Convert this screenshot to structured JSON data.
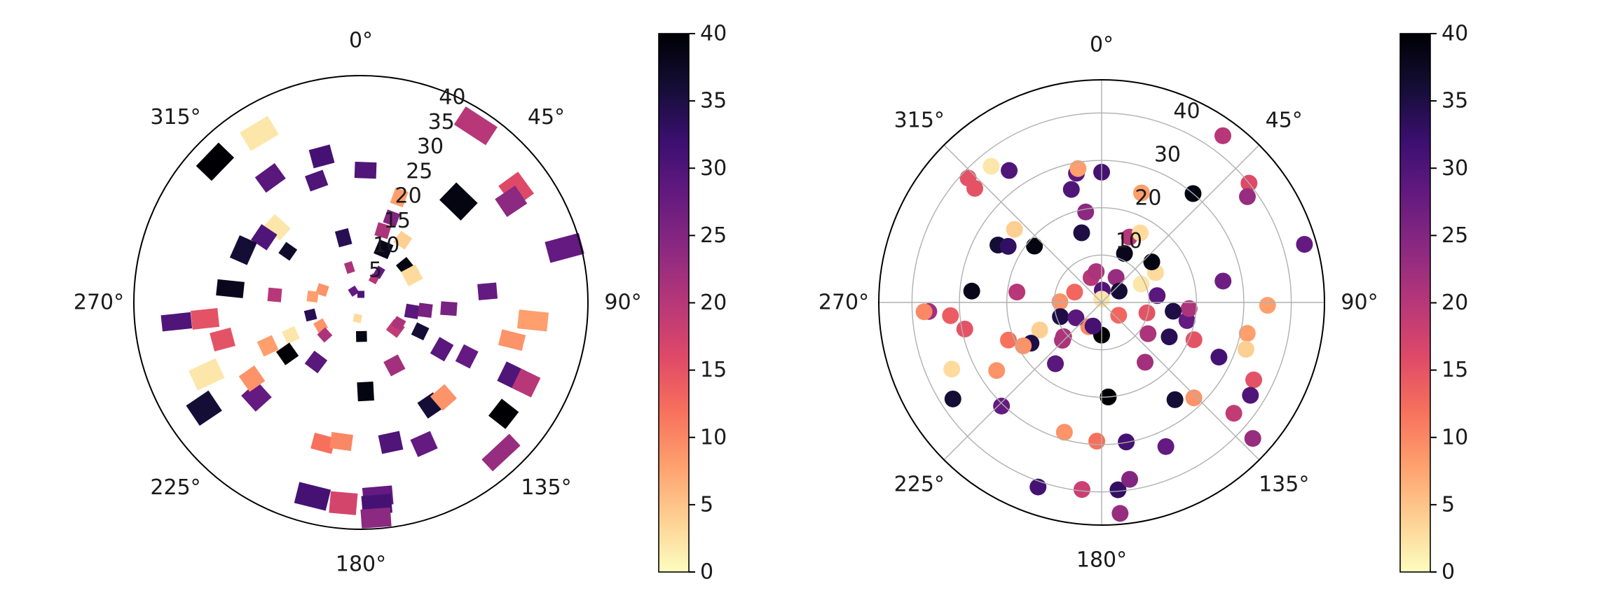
{
  "figure": {
    "background": "#ffffff",
    "text_color": "#1a1a1a",
    "grid_color": "#b0b0b0",
    "axis_color": "#000000"
  },
  "colormap": {
    "name": "magma_r",
    "value_range": [
      0,
      40
    ],
    "stops": [
      [
        0,
        0,
        4
      ],
      [
        20,
        14,
        54
      ],
      [
        59,
        15,
        112
      ],
      [
        100,
        26,
        128
      ],
      [
        140,
        41,
        129
      ],
      [
        183,
        55,
        121
      ],
      [
        222,
        73,
        104
      ],
      [
        247,
        112,
        92
      ],
      [
        254,
        159,
        109
      ],
      [
        254,
        207,
        146
      ],
      [
        252,
        253,
        191
      ]
    ]
  },
  "chart_data": [
    {
      "type": "scatter",
      "projection": "polar",
      "marker": "square",
      "title": "",
      "theta_zero": "top",
      "theta_direction": "clockwise",
      "grid": false,
      "rmax": 42,
      "angle_tick_degrees": [
        0,
        45,
        90,
        135,
        180,
        225,
        270,
        315
      ],
      "angle_tick_labels": [
        "0°",
        "45°",
        "90°",
        "135°",
        "180°",
        "225°",
        "270°",
        "315°"
      ],
      "radial_ticks": [
        5,
        10,
        15,
        20,
        25,
        30,
        35,
        40
      ],
      "radial_tick_labels": [
        "5",
        "10",
        "15",
        "20",
        "25",
        "30",
        "35",
        "40"
      ],
      "radial_label_angle": 24,
      "points_format": [
        "theta_deg",
        "r",
        "value",
        "w_units",
        "h_units"
      ],
      "points": [
        [
          33,
          39,
          20,
          7,
          4
        ],
        [
          44,
          26,
          39,
          5.5,
          4.5
        ],
        [
          54,
          35.5,
          16,
          5,
          4.5
        ],
        [
          56,
          33.5,
          24,
          4,
          4.5
        ],
        [
          75,
          39,
          28,
          4,
          6.5
        ],
        [
          94,
          16.3,
          26,
          2.5,
          3
        ],
        [
          85,
          23.5,
          28,
          3,
          3.5
        ],
        [
          96,
          32,
          8,
          3.5,
          5.5
        ],
        [
          104,
          28.8,
          9,
          3,
          4.5
        ],
        [
          51,
          10.6,
          39,
          2.5,
          2.5
        ],
        [
          62,
          10.7,
          3,
          3,
          3
        ],
        [
          34,
          13.9,
          4,
          2.5,
          2.5
        ],
        [
          23,
          10.7,
          38,
          2.8,
          2.8
        ],
        [
          17,
          13.9,
          21,
          2.5,
          2.5
        ],
        [
          20,
          20.7,
          8,
          2.5,
          3
        ],
        [
          20,
          16.6,
          25,
          2.5,
          2.5
        ],
        [
          2,
          24.5,
          30,
          4,
          3
        ],
        [
          345,
          28,
          31,
          4,
          3.5
        ],
        [
          340,
          24,
          30,
          3.5,
          3
        ],
        [
          345,
          12.4,
          34,
          2.5,
          3
        ],
        [
          329,
          36.5,
          2,
          6,
          4
        ],
        [
          314,
          37.5,
          40,
          6,
          4
        ],
        [
          324,
          28.5,
          29,
          4.5,
          3.5
        ],
        [
          312,
          20.8,
          2,
          3,
          4
        ],
        [
          304,
          21.6,
          30,
          3.5,
          3.5
        ],
        [
          305,
          16.5,
          37,
          2.5,
          2.5
        ],
        [
          294,
          23.8,
          36,
          4.5,
          3.5
        ],
        [
          327,
          2.5,
          28,
          1.5,
          1.5
        ],
        [
          0,
          1.5,
          30,
          1.3,
          1.3
        ],
        [
          29,
          5,
          20,
          1.5,
          1.5
        ],
        [
          31,
          6.5,
          28,
          1.5,
          2
        ],
        [
          342,
          6.8,
          21,
          1.5,
          2
        ],
        [
          288,
          7.5,
          9,
          2,
          2
        ],
        [
          277,
          9,
          8,
          2,
          2
        ],
        [
          275,
          16,
          20,
          2.5,
          2.5
        ],
        [
          276,
          24.3,
          38,
          3,
          5
        ],
        [
          264,
          34.3,
          30,
          3,
          5.5
        ],
        [
          264,
          29,
          15,
          3.5,
          5
        ],
        [
          255,
          26.5,
          15,
          3.5,
          4
        ],
        [
          256,
          9.6,
          34,
          2,
          2
        ],
        [
          245,
          31.5,
          2,
          4,
          5.5
        ],
        [
          245,
          19,
          8,
          3,
          3
        ],
        [
          245,
          14.3,
          2,
          2.5,
          2.5
        ],
        [
          240,
          8.6,
          9,
          2,
          2
        ],
        [
          235,
          16.6,
          40,
          3,
          3
        ],
        [
          228,
          9,
          21,
          2,
          2
        ],
        [
          236,
          35,
          36,
          4.5,
          5
        ],
        [
          228,
          26,
          28,
          4,
          4
        ],
        [
          217,
          13.8,
          29,
          3,
          3
        ],
        [
          235,
          24.6,
          9,
          3.5,
          3.5
        ],
        [
          195,
          27,
          12,
          4,
          3
        ],
        [
          188,
          26,
          10,
          4,
          3
        ],
        [
          194,
          37,
          31,
          6,
          4
        ],
        [
          185,
          37.3,
          17,
          5,
          4
        ],
        [
          175,
          36,
          28,
          5.5,
          3.5
        ],
        [
          175.5,
          37.5,
          31,
          5.5,
          3.5
        ],
        [
          176,
          40,
          24,
          5.5,
          3.5
        ],
        [
          177,
          16.5,
          39,
          3,
          3.5
        ],
        [
          179,
          6.3,
          39,
          2,
          2
        ],
        [
          192,
          3,
          3,
          1.5,
          1.5
        ],
        [
          168,
          26.5,
          30,
          4,
          3.5
        ],
        [
          156,
          28.7,
          28,
          4,
          3.5
        ],
        [
          146,
          23,
          36,
          3.5,
          3.5
        ],
        [
          139,
          23.3,
          9,
          3.5,
          3.5
        ],
        [
          152,
          13.2,
          22,
          3,
          3
        ],
        [
          127,
          8,
          19,
          2.5,
          2.5
        ],
        [
          119,
          8,
          21,
          2,
          2
        ],
        [
          116,
          12.2,
          36,
          2.5,
          2.5
        ],
        [
          137,
          38,
          23,
          7,
          3
        ],
        [
          128,
          33.5,
          40,
          4,
          4
        ],
        [
          116,
          31,
          30,
          4,
          4
        ],
        [
          116,
          34,
          20,
          4,
          4
        ],
        [
          120,
          17.3,
          29,
          3.5,
          3
        ],
        [
          117,
          22,
          28,
          3.5,
          3
        ],
        [
          100,
          9.6,
          29,
          2.5,
          2.5
        ],
        [
          97,
          12,
          26,
          2.5,
          2.5
        ]
      ]
    },
    {
      "type": "scatter",
      "projection": "polar",
      "marker": "circle",
      "title": "",
      "theta_zero": "top",
      "theta_direction": "clockwise",
      "grid": true,
      "rmax": 47,
      "angle_tick_degrees": [
        0,
        45,
        90,
        135,
        180,
        225,
        270,
        315
      ],
      "angle_tick_labels": [
        "0°",
        "45°",
        "90°",
        "135°",
        "180°",
        "225°",
        "270°",
        "315°"
      ],
      "radial_ticks": [
        10,
        20,
        30,
        40
      ],
      "radial_tick_labels": [
        "10",
        "20",
        "30",
        "40"
      ],
      "radial_label_angle": 24,
      "points_format": [
        "theta_deg",
        "r",
        "value"
      ],
      "points": [
        [
          36,
          43.5,
          20
        ],
        [
          51,
          40,
          16
        ],
        [
          54,
          38,
          23
        ],
        [
          40,
          30,
          39
        ],
        [
          74,
          44.5,
          28
        ],
        [
          91,
          35,
          8
        ],
        [
          80,
          26,
          27
        ],
        [
          20,
          24.6,
          8
        ],
        [
          0,
          27.5,
          31
        ],
        [
          349,
          27.8,
          29
        ],
        [
          345,
          24.7,
          30
        ],
        [
          350,
          28.7,
          8
        ],
        [
          350,
          19.4,
          24
        ],
        [
          344,
          15.3,
          35
        ],
        [
          325,
          34,
          30
        ],
        [
          321,
          37,
          2
        ],
        [
          313,
          38.5,
          15
        ],
        [
          312,
          36,
          15
        ],
        [
          310,
          24,
          4
        ],
        [
          299,
          25,
          36
        ],
        [
          301,
          23,
          33
        ],
        [
          310,
          18.5,
          39
        ],
        [
          275,
          27.5,
          38
        ],
        [
          277,
          18,
          20
        ],
        [
          267,
          36.5,
          22
        ],
        [
          267,
          37.5,
          10
        ],
        [
          265,
          32,
          14
        ],
        [
          259,
          29.4,
          15
        ],
        [
          248,
          21.2,
          12
        ],
        [
          246,
          14.3,
          4
        ],
        [
          240,
          17.2,
          35
        ],
        [
          241,
          18.9,
          9
        ],
        [
          228,
          10.8,
          21
        ],
        [
          217,
          16.2,
          29
        ],
        [
          246,
          34.6,
          3
        ],
        [
          237,
          26.4,
          9
        ],
        [
          237,
          37.4,
          36
        ],
        [
          224,
          30.4,
          28
        ],
        [
          196,
          28.5,
          9
        ],
        [
          182,
          29.3,
          12
        ],
        [
          170,
          29.9,
          31
        ],
        [
          156,
          33.3,
          28
        ],
        [
          199,
          41.2,
          31
        ],
        [
          186,
          39.7,
          18
        ],
        [
          175,
          39.7,
          33
        ],
        [
          171,
          37.8,
          25
        ],
        [
          175,
          44.7,
          23
        ],
        [
          176,
          20,
          40
        ],
        [
          180,
          6.9,
          40
        ],
        [
          144,
          15.6,
          22
        ],
        [
          117,
          16,
          34
        ],
        [
          102,
          18.4,
          28
        ],
        [
          112,
          21,
          15
        ],
        [
          124,
          11.8,
          21
        ],
        [
          115,
          27.3,
          31
        ],
        [
          102,
          31.4,
          8
        ],
        [
          108,
          32,
          4
        ],
        [
          117,
          36,
          15
        ],
        [
          122,
          37,
          30
        ],
        [
          130,
          36.4,
          19
        ],
        [
          132,
          42.9,
          23
        ],
        [
          143,
          25.7,
          36
        ],
        [
          136,
          28,
          9
        ],
        [
          94,
          18.5,
          21
        ],
        [
          97,
          15.2,
          35
        ],
        [
          83,
          11.8,
          29
        ],
        [
          61,
          13,
          3
        ],
        [
          65,
          9.2,
          2
        ],
        [
          51,
          13.6,
          39
        ],
        [
          25,
          11.4,
          38
        ],
        [
          23,
          15,
          20
        ],
        [
          29,
          16.8,
          3
        ],
        [
          337,
          5.7,
          20
        ],
        [
          30,
          6.1,
          23
        ],
        [
          3,
          2.6,
          30
        ],
        [
          57,
          4.4,
          36
        ],
        [
          291,
          6.1,
          13
        ],
        [
          271,
          8.8,
          9
        ],
        [
          127,
          4.5,
          13
        ],
        [
          0,
          0.7,
          2
        ],
        [
          208,
          5.8,
          10
        ],
        [
          200,
          5.3,
          31
        ],
        [
          251,
          9.2,
          35
        ],
        [
          239,
          6.3,
          29
        ],
        [
          226,
          11.5,
          21
        ],
        [
          103,
          9.8,
          15
        ],
        [
          350,
          6.6,
          21
        ]
      ]
    }
  ],
  "colorbars": [
    {
      "ticks": [
        0,
        5,
        10,
        15,
        20,
        25,
        30,
        35,
        40
      ],
      "tick_labels": [
        "0",
        "5",
        "10",
        "15",
        "20",
        "25",
        "30",
        "35",
        "40"
      ]
    },
    {
      "ticks": [
        0,
        5,
        10,
        15,
        20,
        25,
        30,
        35,
        40
      ],
      "tick_labels": [
        "0",
        "5",
        "10",
        "15",
        "20",
        "25",
        "30",
        "35",
        "40"
      ]
    }
  ]
}
